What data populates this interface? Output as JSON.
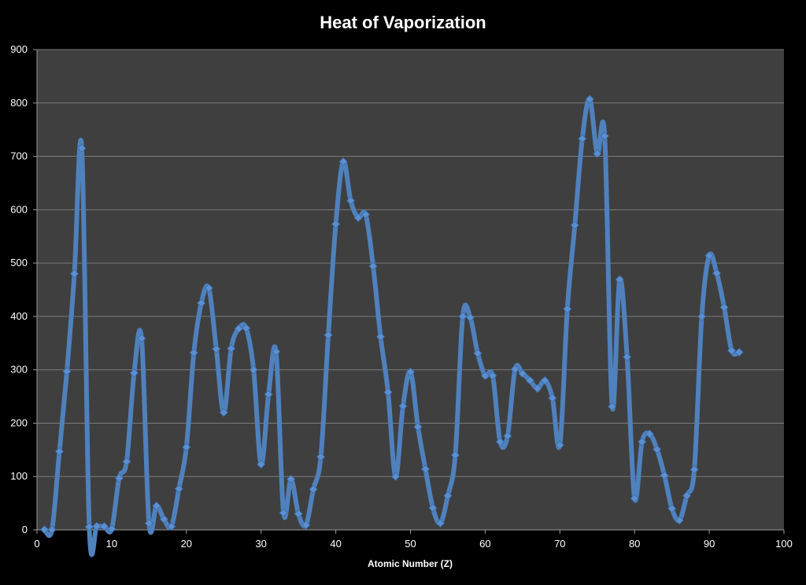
{
  "chart_data": {
    "type": "line",
    "title": "Heat of Vaporization",
    "xlabel": "Atomic Number (Z)",
    "ylabel": "",
    "xlim": [
      0,
      100
    ],
    "ylim": [
      0,
      900
    ],
    "xticks": [
      0,
      10,
      20,
      30,
      40,
      50,
      60,
      70,
      80,
      90,
      100
    ],
    "yticks": [
      0,
      100,
      200,
      300,
      400,
      500,
      600,
      700,
      800,
      900
    ],
    "grid": "horizontal",
    "legend": "none",
    "series": [
      {
        "x": [
          1,
          2,
          3,
          4,
          5,
          6,
          7,
          8,
          9,
          10,
          11,
          12,
          13,
          14,
          15,
          16,
          17,
          18,
          19,
          20,
          21,
          22,
          23,
          24,
          25,
          26,
          27,
          28,
          29,
          30,
          31,
          32,
          33,
          34,
          35,
          36,
          37,
          38,
          39,
          40,
          41,
          42,
          43,
          44,
          45,
          46,
          47,
          48,
          49,
          50,
          51,
          52,
          53,
          54,
          55,
          56,
          57,
          58,
          59,
          60,
          61,
          62,
          63,
          64,
          65,
          66,
          67,
          68,
          69,
          70,
          71,
          72,
          73,
          74,
          75,
          76,
          77,
          78,
          79,
          80,
          81,
          82,
          83,
          84,
          85,
          86,
          87,
          88,
          89,
          90,
          91,
          92,
          93,
          94
        ],
        "y": [
          0.5,
          0.1,
          147,
          297,
          480,
          715,
          5.6,
          6.8,
          6.5,
          1.7,
          97,
          128,
          294,
          359,
          12.4,
          45,
          20,
          6.4,
          77,
          155,
          332,
          425,
          453,
          339,
          220,
          340,
          377,
          378,
          300,
          123,
          254,
          334,
          32,
          95,
          30,
          9,
          76,
          137,
          365,
          573,
          690,
          617,
          585,
          591,
          494,
          362,
          258,
          100,
          232,
          296,
          193,
          114,
          41,
          12.6,
          64,
          140,
          400,
          398,
          331,
          289,
          289,
          165,
          176,
          301,
          293,
          280,
          265,
          280,
          247,
          159,
          414,
          571,
          733,
          807,
          705,
          738,
          231,
          469,
          324,
          59,
          165,
          180,
          151,
          102,
          40,
          18,
          64,
          113,
          400,
          514,
          481,
          417,
          336,
          333
        ]
      }
    ],
    "colors": {
      "background": "#000000",
      "plot_area": "#3f3f3f",
      "gridline": "#7a7a7a",
      "line": "#4f81bd",
      "marker": "#5b8fd0",
      "text": "#ffffff"
    }
  }
}
